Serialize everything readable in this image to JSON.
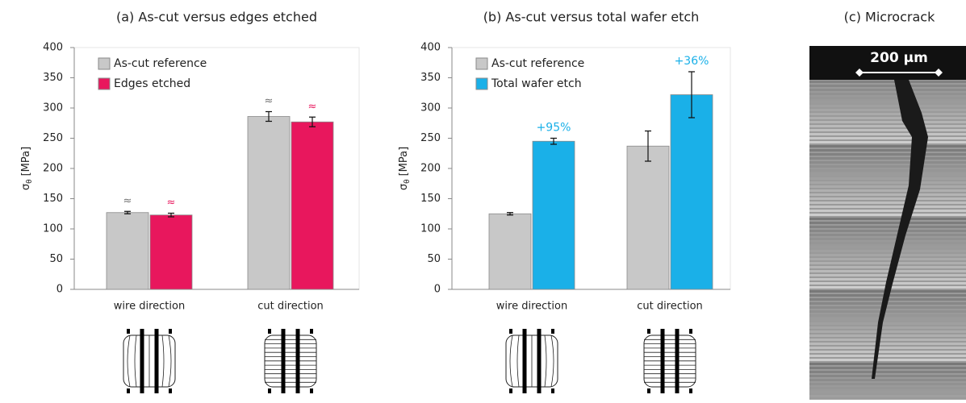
{
  "chart_data": [
    {
      "type": "bar",
      "title": "(a) As-cut versus edges etched",
      "ylabel": "σ",
      "ylabel_sub": "θ",
      "ylabel_unit": "[MPa]",
      "categories": [
        "wire direction",
        "cut direction"
      ],
      "series": [
        {
          "name": "As-cut reference",
          "color": "#c8c8c8",
          "values": [
            127,
            286
          ],
          "errors": [
            2,
            8
          ],
          "annotations": [
            "≈",
            "≈"
          ],
          "annotation_color": "#707070"
        },
        {
          "name": "Edges etched",
          "color": "#e8175d",
          "values": [
            123,
            277
          ],
          "errors": [
            3,
            8
          ],
          "annotations": [
            "≈",
            "≈"
          ],
          "annotation_color": "#e8175d"
        }
      ],
      "ylim": [
        0,
        400
      ],
      "yticks": [
        0,
        50,
        100,
        150,
        200,
        250,
        300,
        350,
        400
      ],
      "legend": "top-left"
    },
    {
      "type": "bar",
      "title": "(b) As-cut versus total wafer etch",
      "ylabel": "σ",
      "ylabel_sub": "θ",
      "ylabel_unit": "[MPa]",
      "categories": [
        "wire direction",
        "cut direction"
      ],
      "series": [
        {
          "name": "As-cut reference",
          "color": "#c8c8c8",
          "values": [
            125,
            237
          ],
          "errors": [
            2,
            25
          ]
        },
        {
          "name": "Total wafer etch",
          "color": "#1ab0e8",
          "values": [
            245,
            322
          ],
          "errors": [
            5,
            38
          ],
          "annotations": [
            "+95%",
            "+36%"
          ],
          "annotation_color": "#1ab0e8"
        }
      ],
      "ylim": [
        0,
        400
      ],
      "yticks": [
        0,
        50,
        100,
        150,
        200,
        250,
        300,
        350,
        400
      ],
      "legend": "top-left"
    }
  ],
  "image_panel": {
    "title": "(c) Microcrack",
    "scale_bar": "200 µm"
  }
}
